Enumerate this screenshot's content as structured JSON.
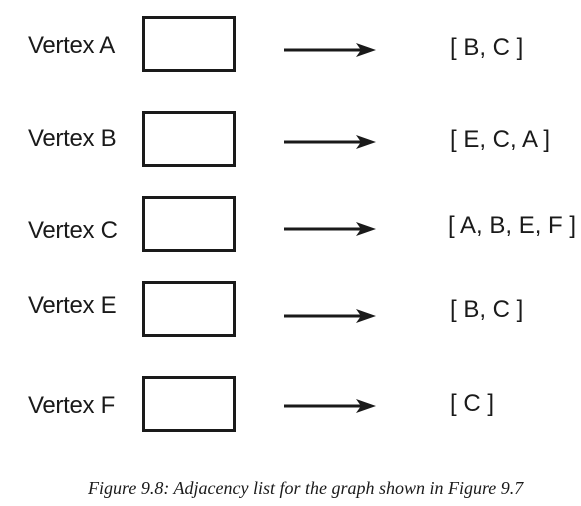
{
  "adjacency_list": [
    {
      "vertex": "Vertex A",
      "neighbors": "[ B, C ]"
    },
    {
      "vertex": "Vertex B",
      "neighbors": "[ E, C, A ]"
    },
    {
      "vertex": "Vertex C",
      "neighbors": "[ A, B, E, F ]"
    },
    {
      "vertex": "Vertex E",
      "neighbors": "[ B, C ]"
    },
    {
      "vertex": "Vertex F",
      "neighbors": "[ C ]"
    }
  ],
  "caption": "Figure 9.8: Adjacency list for the graph shown in Figure 9.7"
}
